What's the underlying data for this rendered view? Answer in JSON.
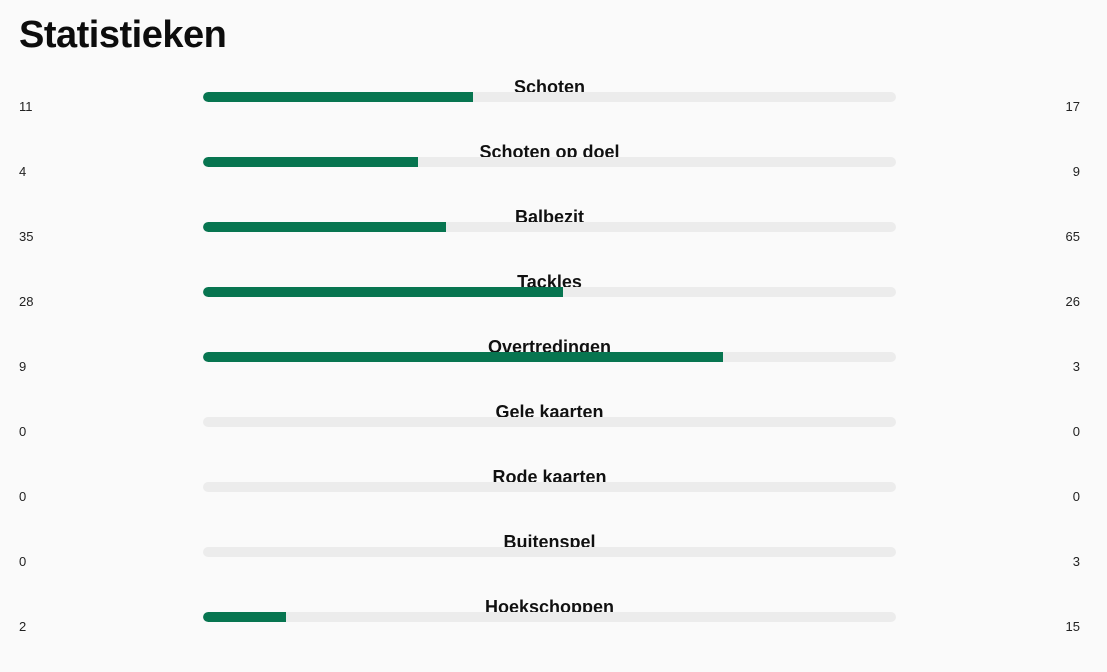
{
  "header": {
    "title": "Statistieken"
  },
  "colors": {
    "bar_fill": "#077550",
    "bar_track": "#ececec",
    "background": "#fafafa"
  },
  "stats": [
    {
      "label": "Schoten",
      "home": "11",
      "away": "17",
      "fill_pct": 39
    },
    {
      "label": "Schoten op doel",
      "home": "4",
      "away": "9",
      "fill_pct": 31
    },
    {
      "label": "Balbezit",
      "home": "35",
      "away": "65",
      "fill_pct": 35
    },
    {
      "label": "Tackles",
      "home": "28",
      "away": "26",
      "fill_pct": 52
    },
    {
      "label": "Overtredingen",
      "home": "9",
      "away": "3",
      "fill_pct": 75
    },
    {
      "label": "Gele kaarten",
      "home": "0",
      "away": "0",
      "fill_pct": 0
    },
    {
      "label": "Rode kaarten",
      "home": "0",
      "away": "0",
      "fill_pct": 0
    },
    {
      "label": "Buitenspel",
      "home": "0",
      "away": "3",
      "fill_pct": 0
    },
    {
      "label": "Hoekschoppen",
      "home": "2",
      "away": "15",
      "fill_pct": 12
    }
  ]
}
